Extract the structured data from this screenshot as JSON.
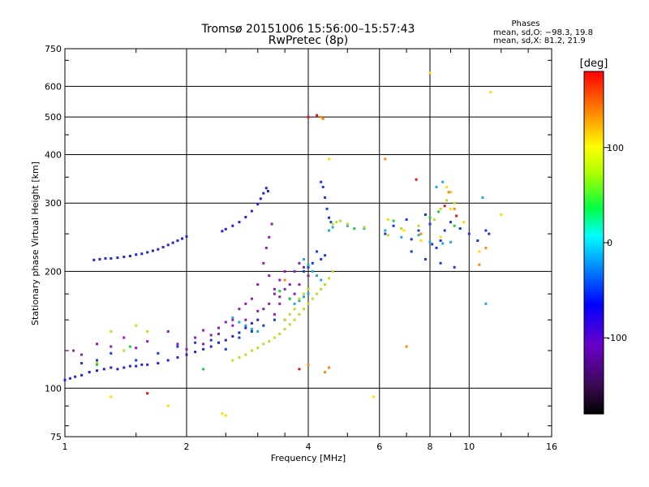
{
  "header": {
    "title_line1": "Tromsø 20151006 15:56:00–15:57:43",
    "title_line2": "RwPretec (8p)",
    "stats_title": "Phases",
    "stats_o": "mean, sd,O: −98.3, 19.8",
    "stats_x": "mean, sd,X: 81.2, 21.9"
  },
  "colorbar": {
    "unit_label": "[deg]",
    "ticks": [
      {
        "value": 100,
        "label": "100"
      },
      {
        "value": 0,
        "label": "0"
      },
      {
        "value": -100,
        "label": "-100"
      }
    ],
    "range": [
      -180,
      180
    ]
  },
  "chart_data": {
    "type": "scatter",
    "xlabel": "Frequency [MHz]",
    "ylabel": "Stationary phase Virtual Height [km]",
    "xscale": "log",
    "yscale": "log",
    "xlim": [
      1,
      16
    ],
    "ylim": [
      75,
      750
    ],
    "xticks": [
      {
        "value": 1,
        "label": "1"
      },
      {
        "value": 2,
        "label": "2"
      },
      {
        "value": 4,
        "label": "4"
      },
      {
        "value": 6,
        "label": "6"
      },
      {
        "value": 8,
        "label": "8"
      },
      {
        "value": 10,
        "label": "10"
      },
      {
        "value": 16,
        "label": "16"
      }
    ],
    "yticks": [
      {
        "value": 75,
        "label": "75"
      },
      {
        "value": 100,
        "label": "100"
      },
      {
        "value": 200,
        "label": "200"
      },
      {
        "value": 300,
        "label": "300"
      },
      {
        "value": 400,
        "label": "400"
      },
      {
        "value": 500,
        "label": "500"
      },
      {
        "value": 600,
        "label": "600"
      },
      {
        "value": 750,
        "label": "750"
      }
    ],
    "xgrid": [
      2,
      4,
      6,
      8,
      10
    ],
    "ygrid": [
      100,
      200,
      300,
      400,
      500,
      600
    ],
    "series": [
      {
        "color": "#2222dd",
        "points": [
          [
            1.0,
            105
          ],
          [
            1.03,
            106
          ],
          [
            1.06,
            107
          ],
          [
            1.1,
            108
          ],
          [
            1.15,
            110
          ],
          [
            1.2,
            111
          ],
          [
            1.25,
            112
          ],
          [
            1.3,
            113
          ],
          [
            1.35,
            112
          ],
          [
            1.4,
            113
          ],
          [
            1.45,
            114
          ],
          [
            1.5,
            114
          ],
          [
            1.55,
            115
          ],
          [
            1.6,
            115
          ],
          [
            1.7,
            116
          ],
          [
            1.8,
            118
          ],
          [
            1.9,
            120
          ],
          [
            2.0,
            122
          ],
          [
            2.1,
            124
          ],
          [
            2.2,
            126
          ],
          [
            2.3,
            128
          ],
          [
            2.4,
            131
          ],
          [
            2.5,
            133
          ],
          [
            2.6,
            136
          ],
          [
            2.7,
            139
          ],
          [
            2.8,
            143
          ],
          [
            2.9,
            147
          ],
          [
            3.0,
            150
          ],
          [
            1.18,
            214
          ],
          [
            1.22,
            215
          ],
          [
            1.26,
            216
          ],
          [
            1.3,
            216
          ],
          [
            1.35,
            217
          ],
          [
            1.4,
            218
          ],
          [
            1.45,
            219
          ],
          [
            1.5,
            221
          ],
          [
            1.55,
            222
          ],
          [
            1.6,
            224
          ],
          [
            1.65,
            226
          ],
          [
            1.7,
            228
          ],
          [
            1.75,
            231
          ],
          [
            1.8,
            234
          ],
          [
            1.85,
            237
          ],
          [
            1.9,
            240
          ],
          [
            1.95,
            243
          ],
          [
            2.0,
            246
          ],
          [
            2.45,
            254
          ],
          [
            2.5,
            257
          ],
          [
            2.6,
            262
          ],
          [
            2.7,
            268
          ],
          [
            2.8,
            276
          ],
          [
            2.9,
            286
          ],
          [
            3.0,
            298
          ],
          [
            3.05,
            308
          ],
          [
            3.1,
            318
          ],
          [
            3.15,
            328
          ],
          [
            3.18,
            322
          ]
        ]
      },
      {
        "color": "#8a1fb0",
        "points": [
          [
            1.05,
            125
          ],
          [
            1.1,
            122
          ],
          [
            1.2,
            130
          ],
          [
            1.3,
            128
          ],
          [
            1.4,
            135
          ],
          [
            1.5,
            127
          ],
          [
            1.6,
            132
          ],
          [
            1.8,
            140
          ],
          [
            1.9,
            130
          ],
          [
            2.0,
            126
          ],
          [
            2.1,
            135
          ],
          [
            2.2,
            141
          ],
          [
            2.4,
            138
          ],
          [
            2.6,
            145
          ],
          [
            2.8,
            150
          ],
          [
            3.0,
            158
          ],
          [
            3.2,
            165
          ],
          [
            3.3,
            175
          ],
          [
            3.4,
            172
          ],
          [
            3.5,
            180
          ],
          [
            3.2,
            195
          ],
          [
            3.1,
            210
          ],
          [
            3.15,
            230
          ],
          [
            3.2,
            245
          ],
          [
            3.25,
            265
          ],
          [
            3.3,
            180
          ],
          [
            3.4,
            190
          ],
          [
            3.5,
            150
          ],
          [
            3.6,
            185
          ],
          [
            3.7,
            200
          ],
          [
            3.8,
            210
          ],
          [
            3.9,
            205
          ],
          [
            4.0,
            195
          ],
          [
            3.3,
            155
          ],
          [
            3.4,
            165
          ],
          [
            3.6,
            170
          ],
          [
            2.9,
            170
          ],
          [
            3.0,
            185
          ],
          [
            3.1,
            160
          ],
          [
            2.8,
            165
          ],
          [
            2.7,
            160
          ],
          [
            2.6,
            150
          ],
          [
            2.5,
            148
          ],
          [
            2.4,
            143
          ],
          [
            2.3,
            137
          ],
          [
            2.2,
            130
          ],
          [
            3.5,
            200
          ],
          [
            3.7,
            175
          ],
          [
            3.8,
            185
          ]
        ]
      },
      {
        "color": "#1a3ad8",
        "points": [
          [
            4.3,
            340
          ],
          [
            4.35,
            330
          ],
          [
            4.4,
            310
          ],
          [
            4.45,
            290
          ],
          [
            4.5,
            275
          ],
          [
            4.55,
            268
          ],
          [
            4.4,
            220
          ],
          [
            4.3,
            215
          ],
          [
            4.2,
            225
          ],
          [
            4.1,
            210
          ],
          [
            4.0,
            205
          ],
          [
            3.9,
            200
          ],
          [
            1.1,
            116
          ],
          [
            1.2,
            118
          ],
          [
            1.3,
            123
          ],
          [
            1.5,
            118
          ],
          [
            1.7,
            123
          ],
          [
            1.9,
            128
          ],
          [
            2.1,
            131
          ],
          [
            2.3,
            133
          ],
          [
            2.5,
            126
          ],
          [
            2.7,
            135
          ],
          [
            2.9,
            140
          ],
          [
            3.1,
            145
          ],
          [
            3.3,
            150
          ],
          [
            6.2,
            250
          ],
          [
            6.5,
            262
          ],
          [
            7.0,
            272
          ],
          [
            7.2,
            242
          ],
          [
            7.5,
            255
          ],
          [
            7.8,
            280
          ],
          [
            8.0,
            265
          ],
          [
            8.1,
            235
          ],
          [
            8.3,
            230
          ],
          [
            8.5,
            240
          ],
          [
            8.7,
            255
          ],
          [
            9.0,
            268
          ],
          [
            9.5,
            258
          ],
          [
            10.0,
            250
          ],
          [
            10.5,
            240
          ],
          [
            11.0,
            255
          ],
          [
            11.2,
            250
          ],
          [
            7.2,
            225
          ],
          [
            7.8,
            215
          ],
          [
            8.5,
            210
          ],
          [
            9.2,
            205
          ]
        ]
      },
      {
        "color": "#25a8d6",
        "points": [
          [
            3.9,
            215
          ],
          [
            4.0,
            208
          ],
          [
            4.1,
            200
          ],
          [
            4.2,
            195
          ],
          [
            4.3,
            190
          ],
          [
            4.4,
            185
          ],
          [
            4.0,
            175
          ],
          [
            3.9,
            172
          ],
          [
            3.8,
            168
          ],
          [
            3.7,
            165
          ],
          [
            2.6,
            152
          ],
          [
            2.7,
            148
          ],
          [
            2.8,
            145
          ],
          [
            2.9,
            142
          ],
          [
            3.0,
            140
          ],
          [
            4.5,
            255
          ],
          [
            4.6,
            260
          ],
          [
            5.0,
            262
          ],
          [
            5.5,
            258
          ],
          [
            6.2,
            255
          ],
          [
            6.8,
            245
          ],
          [
            7.5,
            248
          ],
          [
            8.0,
            238
          ],
          [
            8.6,
            236
          ],
          [
            9.0,
            238
          ],
          [
            8.3,
            330
          ],
          [
            8.6,
            340
          ],
          [
            11.0,
            165
          ],
          [
            10.8,
            310
          ]
        ]
      },
      {
        "color": "#b8e020",
        "points": [
          [
            2.6,
            118
          ],
          [
            2.7,
            120
          ],
          [
            2.8,
            122
          ],
          [
            2.9,
            125
          ],
          [
            3.0,
            127
          ],
          [
            3.1,
            130
          ],
          [
            3.2,
            132
          ],
          [
            3.3,
            135
          ],
          [
            3.4,
            138
          ],
          [
            3.5,
            142
          ],
          [
            3.6,
            146
          ],
          [
            3.7,
            150
          ],
          [
            3.8,
            155
          ],
          [
            3.9,
            160
          ],
          [
            4.0,
            165
          ],
          [
            4.1,
            170
          ],
          [
            4.2,
            175
          ],
          [
            4.3,
            180
          ],
          [
            4.4,
            185
          ],
          [
            4.5,
            192
          ],
          [
            4.6,
            200
          ],
          [
            3.5,
            150
          ],
          [
            3.6,
            155
          ],
          [
            3.7,
            160
          ],
          [
            3.8,
            170
          ],
          [
            3.9,
            175
          ],
          [
            4.0,
            180
          ],
          [
            4.6,
            265
          ],
          [
            4.7,
            268
          ],
          [
            4.8,
            270
          ],
          [
            5.0,
            265
          ],
          [
            5.5,
            260
          ],
          [
            6.3,
            248
          ],
          [
            6.8,
            258
          ],
          [
            7.5,
            262
          ],
          [
            8.2,
            272
          ],
          [
            8.5,
            290
          ],
          [
            8.8,
            305
          ],
          [
            9.0,
            320
          ],
          [
            9.2,
            300
          ],
          [
            1.3,
            140
          ],
          [
            1.5,
            145
          ],
          [
            1.6,
            140
          ],
          [
            1.4,
            125
          ],
          [
            1.2,
            116
          ]
        ]
      },
      {
        "color": "#ffdd00",
        "points": [
          [
            2.5,
            85
          ],
          [
            2.45,
            86
          ],
          [
            1.8,
            90
          ],
          [
            1.3,
            95
          ],
          [
            8.0,
            650
          ],
          [
            8.8,
            330
          ],
          [
            9.0,
            290
          ],
          [
            8.5,
            245
          ],
          [
            7.6,
            240
          ],
          [
            6.3,
            272
          ],
          [
            6.9,
            255
          ],
          [
            4.5,
            390
          ],
          [
            5.8,
            95
          ],
          [
            9.7,
            268
          ],
          [
            10.6,
            225
          ],
          [
            12.0,
            280
          ],
          [
            11.3,
            580
          ]
        ]
      },
      {
        "color": "#ff8800",
        "points": [
          [
            4.3,
            500
          ],
          [
            4.35,
            495
          ],
          [
            4.0,
            115
          ],
          [
            4.4,
            110
          ],
          [
            4.5,
            113
          ],
          [
            6.2,
            390
          ],
          [
            7.0,
            128
          ],
          [
            7.6,
            250
          ],
          [
            8.9,
            320
          ],
          [
            9.2,
            290
          ],
          [
            10.6,
            208
          ],
          [
            11.0,
            230
          ],
          [
            3.5,
            190
          ]
        ]
      },
      {
        "color": "#ee1111",
        "points": [
          [
            4.0,
            500
          ],
          [
            4.2,
            505
          ],
          [
            3.8,
            112
          ],
          [
            7.4,
            345
          ],
          [
            8.7,
            295
          ],
          [
            9.3,
            278
          ],
          [
            1.6,
            97
          ]
        ]
      },
      {
        "color": "#22cc44",
        "points": [
          [
            1.2,
            115
          ],
          [
            1.45,
            128
          ],
          [
            2.2,
            112
          ],
          [
            3.4,
            178
          ],
          [
            3.6,
            170
          ],
          [
            6.5,
            270
          ],
          [
            8.0,
            275
          ],
          [
            8.4,
            285
          ],
          [
            9.2,
            262
          ],
          [
            5.2,
            258
          ]
        ]
      }
    ]
  }
}
